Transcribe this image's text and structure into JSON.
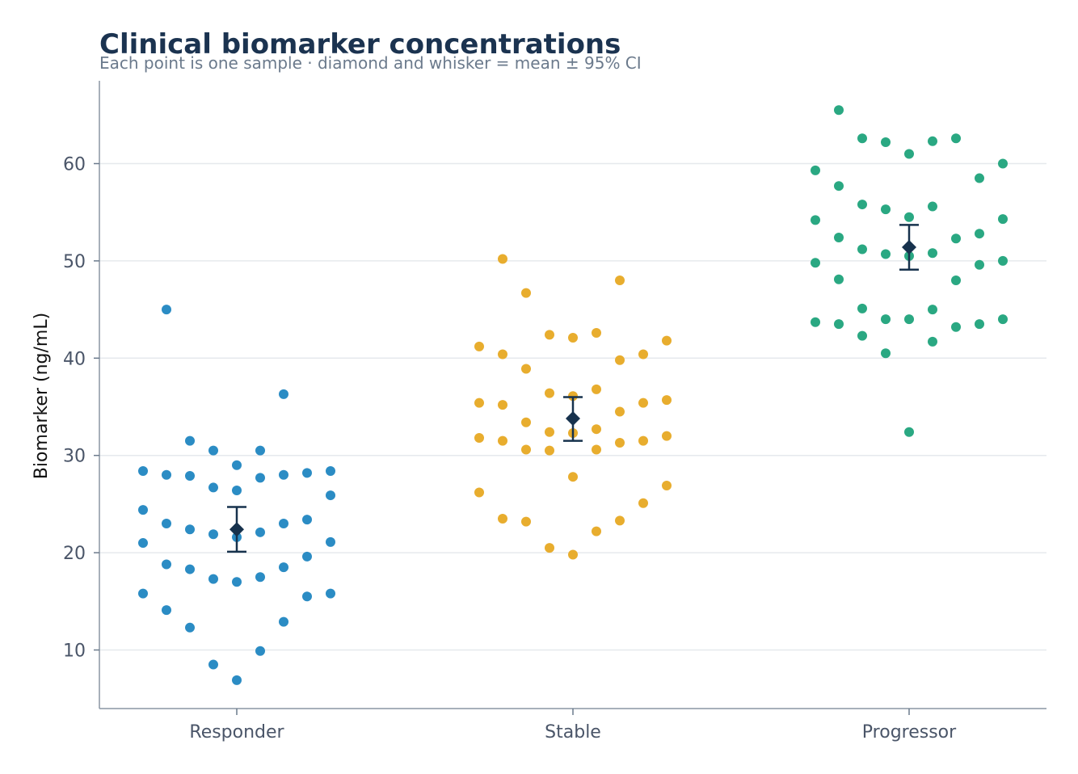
{
  "chart_data": {
    "type": "scatter",
    "title": "Clinical biomarker concentrations",
    "subtitle": "Each point is one sample · diamond and whisker = mean ± 95% CI",
    "ylabel": "Biomarker (ng/mL)",
    "xlabel": "",
    "ylim": [
      4,
      68.5
    ],
    "yticks": [
      10,
      20,
      30,
      40,
      50,
      60
    ],
    "grid": true,
    "mean_marker_color": "#17324d",
    "categories": [
      "Responder",
      "Stable",
      "Progressor"
    ],
    "groups": [
      {
        "name": "Responder",
        "color": "#2b8cc4",
        "mean": 22.4,
        "ci": [
          20.1,
          24.7
        ],
        "points": [
          {
            "slot": -4,
            "y": 28.4
          },
          {
            "slot": -4,
            "y": 24.4
          },
          {
            "slot": -4,
            "y": 21.0
          },
          {
            "slot": -4,
            "y": 15.8
          },
          {
            "slot": -3,
            "y": 45.0
          },
          {
            "slot": -3,
            "y": 28.0
          },
          {
            "slot": -3,
            "y": 23.0
          },
          {
            "slot": -3,
            "y": 18.8
          },
          {
            "slot": -3,
            "y": 14.1
          },
          {
            "slot": -2,
            "y": 31.5
          },
          {
            "slot": -2,
            "y": 27.9
          },
          {
            "slot": -2,
            "y": 22.4
          },
          {
            "slot": -2,
            "y": 18.3
          },
          {
            "slot": -2,
            "y": 12.3
          },
          {
            "slot": -1,
            "y": 30.5
          },
          {
            "slot": -1,
            "y": 26.7
          },
          {
            "slot": -1,
            "y": 21.9
          },
          {
            "slot": -1,
            "y": 17.3
          },
          {
            "slot": -1,
            "y": 8.5
          },
          {
            "slot": 0,
            "y": 29.0
          },
          {
            "slot": 0,
            "y": 26.4
          },
          {
            "slot": 0,
            "y": 21.6
          },
          {
            "slot": 0,
            "y": 17.0
          },
          {
            "slot": 0,
            "y": 6.9
          },
          {
            "slot": 1,
            "y": 30.5
          },
          {
            "slot": 1,
            "y": 27.7
          },
          {
            "slot": 1,
            "y": 22.1
          },
          {
            "slot": 1,
            "y": 17.5
          },
          {
            "slot": 1,
            "y": 9.9
          },
          {
            "slot": 2,
            "y": 36.3
          },
          {
            "slot": 2,
            "y": 28.0
          },
          {
            "slot": 2,
            "y": 23.0
          },
          {
            "slot": 2,
            "y": 18.5
          },
          {
            "slot": 2,
            "y": 12.9
          },
          {
            "slot": 3,
            "y": 28.2
          },
          {
            "slot": 3,
            "y": 23.4
          },
          {
            "slot": 3,
            "y": 19.6
          },
          {
            "slot": 3,
            "y": 15.5
          },
          {
            "slot": 4,
            "y": 28.4
          },
          {
            "slot": 4,
            "y": 25.9
          },
          {
            "slot": 4,
            "y": 21.1
          },
          {
            "slot": 4,
            "y": 15.8
          }
        ]
      },
      {
        "name": "Stable",
        "color": "#e8ad2e",
        "mean": 33.8,
        "ci": [
          31.5,
          36.0
        ],
        "points": [
          {
            "slot": -4,
            "y": 41.2
          },
          {
            "slot": -4,
            "y": 35.4
          },
          {
            "slot": -4,
            "y": 31.8
          },
          {
            "slot": -4,
            "y": 26.2
          },
          {
            "slot": -3,
            "y": 50.2
          },
          {
            "slot": -3,
            "y": 40.4
          },
          {
            "slot": -3,
            "y": 35.2
          },
          {
            "slot": -3,
            "y": 31.5
          },
          {
            "slot": -3,
            "y": 23.5
          },
          {
            "slot": -2,
            "y": 46.7
          },
          {
            "slot": -2,
            "y": 38.9
          },
          {
            "slot": -2,
            "y": 33.4
          },
          {
            "slot": -2,
            "y": 30.6
          },
          {
            "slot": -2,
            "y": 23.2
          },
          {
            "slot": -1,
            "y": 42.4
          },
          {
            "slot": -1,
            "y": 36.4
          },
          {
            "slot": -1,
            "y": 32.4
          },
          {
            "slot": -1,
            "y": 30.5
          },
          {
            "slot": -1,
            "y": 20.5
          },
          {
            "slot": 0,
            "y": 42.1
          },
          {
            "slot": 0,
            "y": 36.1
          },
          {
            "slot": 0,
            "y": 32.3
          },
          {
            "slot": 0,
            "y": 27.8
          },
          {
            "slot": 0,
            "y": 19.8
          },
          {
            "slot": 1,
            "y": 42.6
          },
          {
            "slot": 1,
            "y": 36.8
          },
          {
            "slot": 1,
            "y": 32.7
          },
          {
            "slot": 1,
            "y": 30.6
          },
          {
            "slot": 1,
            "y": 22.2
          },
          {
            "slot": 2,
            "y": 48.0
          },
          {
            "slot": 2,
            "y": 39.8
          },
          {
            "slot": 2,
            "y": 34.5
          },
          {
            "slot": 2,
            "y": 31.3
          },
          {
            "slot": 2,
            "y": 23.3
          },
          {
            "slot": 3,
            "y": 40.4
          },
          {
            "slot": 3,
            "y": 35.4
          },
          {
            "slot": 3,
            "y": 31.5
          },
          {
            "slot": 3,
            "y": 25.1
          },
          {
            "slot": 4,
            "y": 41.8
          },
          {
            "slot": 4,
            "y": 35.7
          },
          {
            "slot": 4,
            "y": 32.0
          },
          {
            "slot": 4,
            "y": 26.9
          }
        ]
      },
      {
        "name": "Progressor",
        "color": "#2aa882",
        "mean": 51.4,
        "ci": [
          49.1,
          53.7
        ],
        "points": [
          {
            "slot": -4,
            "y": 59.3
          },
          {
            "slot": -4,
            "y": 54.2
          },
          {
            "slot": -4,
            "y": 49.8
          },
          {
            "slot": -4,
            "y": 43.7
          },
          {
            "slot": -3,
            "y": 65.5
          },
          {
            "slot": -3,
            "y": 57.7
          },
          {
            "slot": -3,
            "y": 52.4
          },
          {
            "slot": -3,
            "y": 48.1
          },
          {
            "slot": -3,
            "y": 43.5
          },
          {
            "slot": -2,
            "y": 62.6
          },
          {
            "slot": -2,
            "y": 55.8
          },
          {
            "slot": -2,
            "y": 51.2
          },
          {
            "slot": -2,
            "y": 45.1
          },
          {
            "slot": -2,
            "y": 42.3
          },
          {
            "slot": -1,
            "y": 62.2
          },
          {
            "slot": -1,
            "y": 55.3
          },
          {
            "slot": -1,
            "y": 50.7
          },
          {
            "slot": -1,
            "y": 44.0
          },
          {
            "slot": -1,
            "y": 40.5
          },
          {
            "slot": 0,
            "y": 61.0
          },
          {
            "slot": 0,
            "y": 54.5
          },
          {
            "slot": 0,
            "y": 50.5
          },
          {
            "slot": 0,
            "y": 44.0
          },
          {
            "slot": 0,
            "y": 32.4
          },
          {
            "slot": 1,
            "y": 62.3
          },
          {
            "slot": 1,
            "y": 55.6
          },
          {
            "slot": 1,
            "y": 50.8
          },
          {
            "slot": 1,
            "y": 45.0
          },
          {
            "slot": 1,
            "y": 41.7
          },
          {
            "slot": 2,
            "y": 62.6
          },
          {
            "slot": 2,
            "y": 52.3
          },
          {
            "slot": 2,
            "y": 48.0
          },
          {
            "slot": 2,
            "y": 43.2
          },
          {
            "slot": 3,
            "y": 58.5
          },
          {
            "slot": 3,
            "y": 52.8
          },
          {
            "slot": 3,
            "y": 49.6
          },
          {
            "slot": 3,
            "y": 43.5
          },
          {
            "slot": 4,
            "y": 60.0
          },
          {
            "slot": 4,
            "y": 54.3
          },
          {
            "slot": 4,
            "y": 50.0
          },
          {
            "slot": 4,
            "y": 44.0
          }
        ]
      }
    ]
  }
}
